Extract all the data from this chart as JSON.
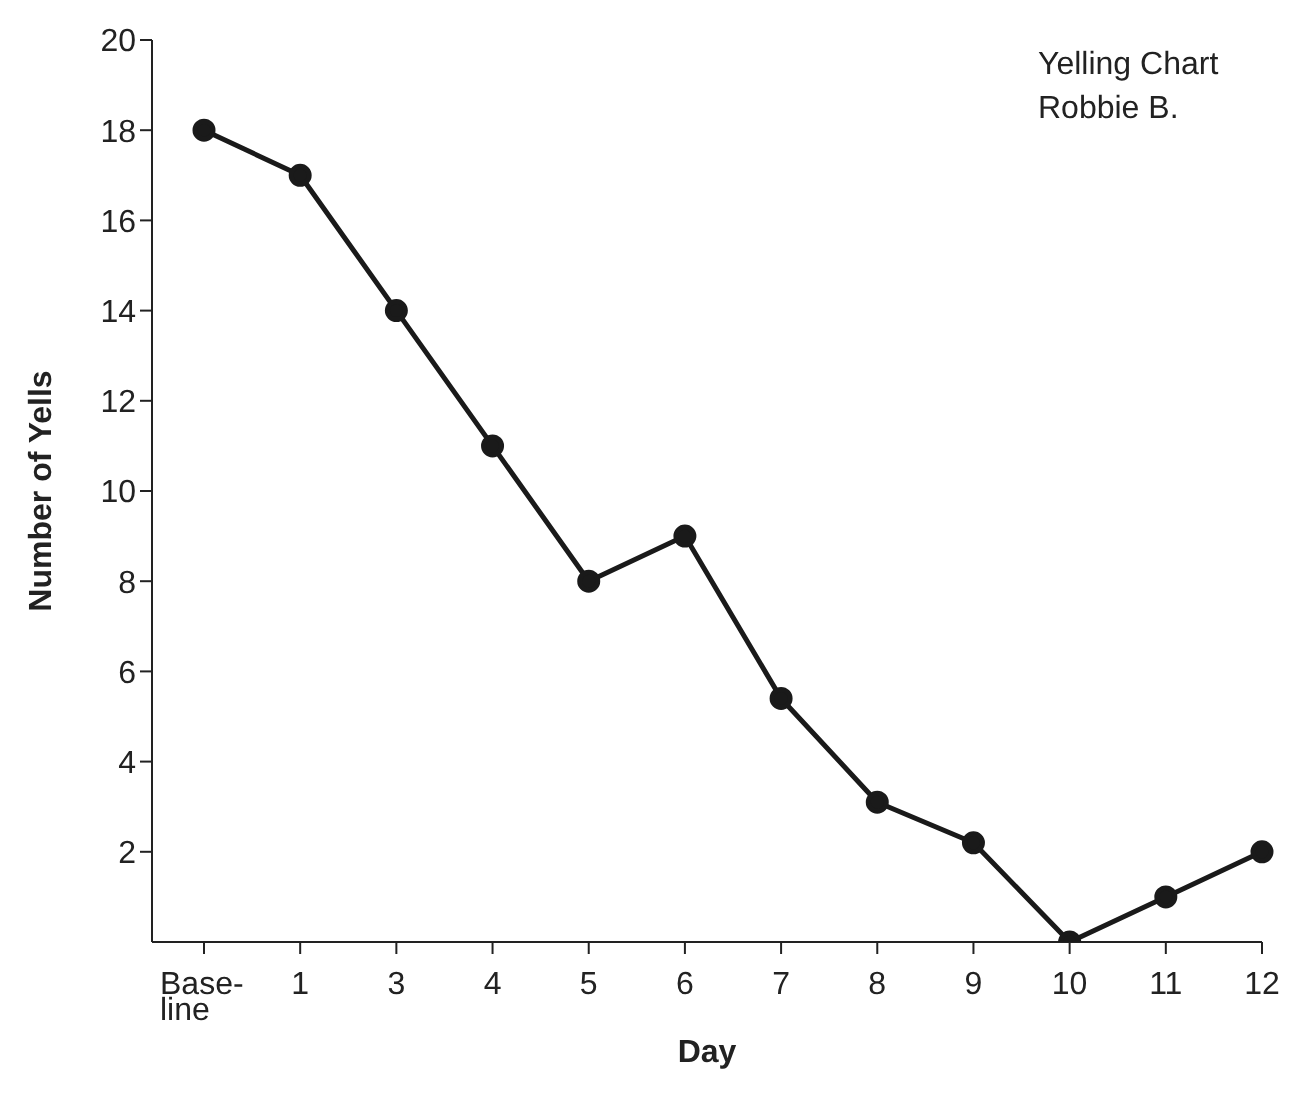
{
  "chart_data": {
    "type": "line",
    "xlabel": "Day",
    "ylabel": "Number of Yells",
    "categories": [
      "Base-\nline",
      "1",
      "3",
      "4",
      "5",
      "6",
      "7",
      "8",
      "9",
      "10",
      "11",
      "12"
    ],
    "values": [
      18,
      17,
      14,
      11,
      8,
      9,
      5.4,
      3.1,
      2.2,
      0,
      1,
      2
    ],
    "color": "#1a1a1a",
    "ylim": [
      0,
      20
    ],
    "yticks": [
      2,
      4,
      6,
      8,
      10,
      12,
      14,
      16,
      18,
      20
    ],
    "marker": "circle",
    "line_style": "solid",
    "grid": false,
    "legend": false,
    "annotations": [
      "Yelling Chart",
      "Robbie B."
    ]
  }
}
